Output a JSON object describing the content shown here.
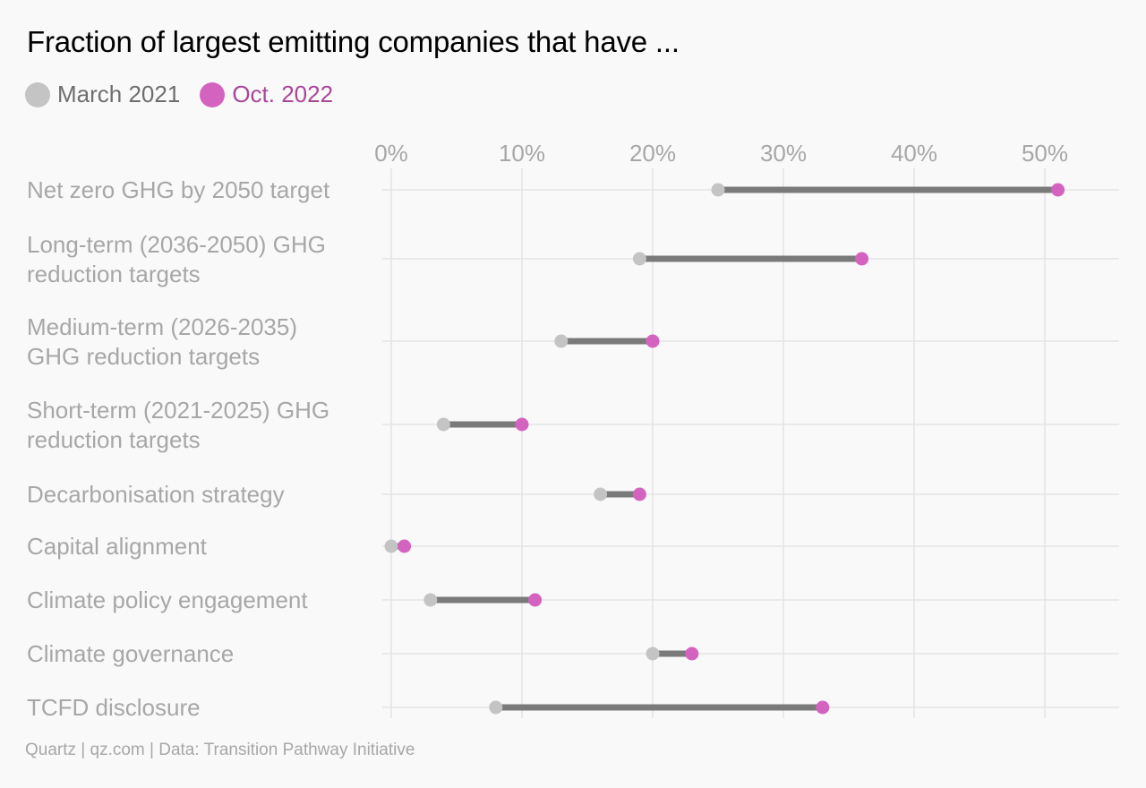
{
  "chart_data": {
    "type": "dumbbell",
    "title": "Fraction of largest emitting companies that have ...",
    "source": "Quartz | qz.com | Data: Transition Pathway Initiative",
    "xlim": [
      0,
      55
    ],
    "x_ticks": [
      {
        "value": 0,
        "label": "0%"
      },
      {
        "value": 10,
        "label": "10%"
      },
      {
        "value": 20,
        "label": "20%"
      },
      {
        "value": 30,
        "label": "30%"
      },
      {
        "value": 40,
        "label": "40%"
      },
      {
        "value": 50,
        "label": "50%"
      }
    ],
    "x_axis_position": "top",
    "grid": true,
    "legend_position": "top-left",
    "series": [
      {
        "name": "March 2021",
        "color": "#c4c4c4"
      },
      {
        "name": "Oct. 2022",
        "color": "#d463c0",
        "label_color": "#a8479a"
      }
    ],
    "connector_color": "#7a7a7a",
    "categories": [
      {
        "label_lines": [
          "Net zero GHG by 2050 target"
        ],
        "march_2021": 25,
        "oct_2022": 51
      },
      {
        "label_lines": [
          "Long-term (2036-2050) GHG",
          "reduction targets"
        ],
        "march_2021": 19,
        "oct_2022": 36
      },
      {
        "label_lines": [
          "Medium-term (2026-2035)",
          "GHG reduction targets"
        ],
        "march_2021": 13,
        "oct_2022": 20
      },
      {
        "label_lines": [
          "Short-term (2021-2025) GHG",
          "reduction targets"
        ],
        "march_2021": 4,
        "oct_2022": 10
      },
      {
        "label_lines": [
          "Decarbonisation strategy"
        ],
        "march_2021": 16,
        "oct_2022": 19
      },
      {
        "label_lines": [
          "Capital alignment"
        ],
        "march_2021": 0,
        "oct_2022": 1
      },
      {
        "label_lines": [
          "Climate policy engagement"
        ],
        "march_2021": 3,
        "oct_2022": 11
      },
      {
        "label_lines": [
          "Climate governance"
        ],
        "march_2021": 20,
        "oct_2022": 23
      },
      {
        "label_lines": [
          "TCFD disclosure"
        ],
        "march_2021": 8,
        "oct_2022": 33
      }
    ]
  }
}
